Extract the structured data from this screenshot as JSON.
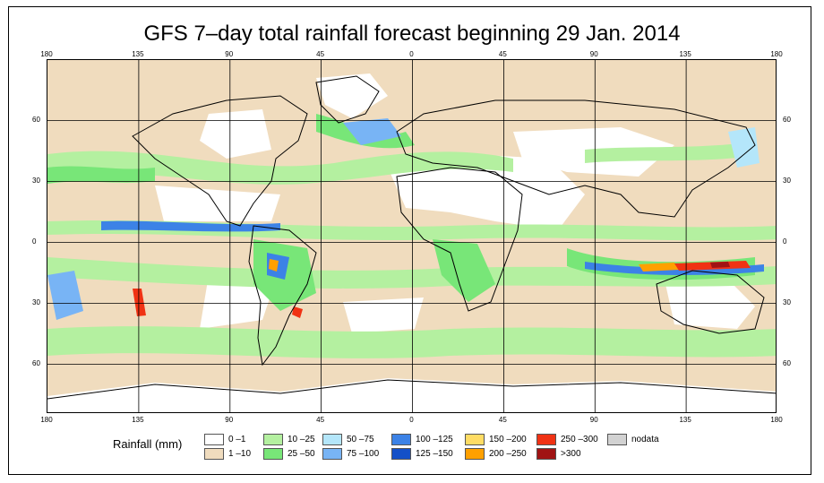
{
  "title": "GFS 7–day total rainfall forecast beginning 29 Jan. 2014",
  "axes": {
    "lon_ticks_top": [
      "180",
      "135",
      "90",
      "45",
      "0",
      "45",
      "90",
      "135",
      "180"
    ],
    "lon_ticks_bottom": [
      "180",
      "135",
      "90",
      "45",
      "0",
      "45",
      "90",
      "135",
      "180"
    ],
    "lat_ticks_left": [
      "60",
      "30",
      "0",
      "30",
      "60"
    ],
    "lat_ticks_right": [
      "60",
      "30",
      "0",
      "30",
      "60"
    ]
  },
  "legend": {
    "title": "Rainfall (mm)",
    "items": [
      {
        "label": "0 –1",
        "color": "#ffffff"
      },
      {
        "label": "1 –10",
        "color": "#f0dcbe"
      },
      {
        "label": "10 –25",
        "color": "#b4f0a0"
      },
      {
        "label": "25 –50",
        "color": "#78e678"
      },
      {
        "label": "50 –75",
        "color": "#b4e6fa"
      },
      {
        "label": "75 –100",
        "color": "#78b4f5"
      },
      {
        "label": "100 –125",
        "color": "#3c82e6"
      },
      {
        "label": "125 –150",
        "color": "#1450c8"
      },
      {
        "label": "150 –200",
        "color": "#ffdc64"
      },
      {
        "label": "200 –250",
        "color": "#ffa000"
      },
      {
        "label": "250 –300",
        "color": "#f03214"
      },
      {
        "label": ">300",
        "color": "#a01414"
      },
      {
        "label": "nodata",
        "color": "#d2d2d2"
      }
    ]
  }
}
